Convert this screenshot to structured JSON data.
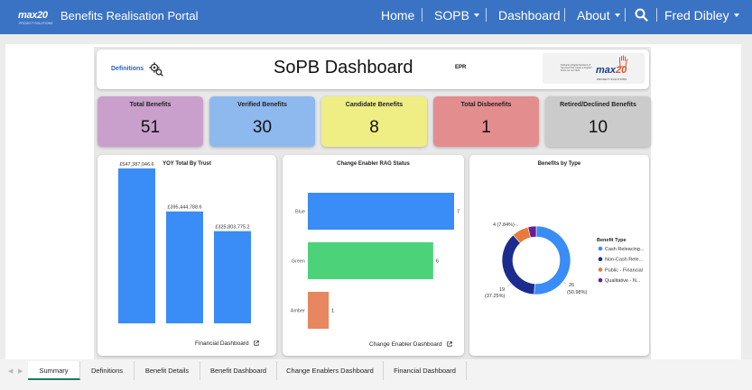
{
  "app": {
    "logo_text": "max20",
    "logo_sub": "PROJECT SOLUTIONS",
    "title": "Benefits Realisation Portal"
  },
  "nav": {
    "home": "Home",
    "sopb": "SOPB",
    "dashboard": "Dashboard",
    "about": "About",
    "user": "Fred Dibley"
  },
  "header": {
    "definitions": "Definitions",
    "title": "SoPB Dashboard",
    "epr": "EPR",
    "logo_tagline": "Delivering Digital Solutions & Services that create a brighter future for our NHS",
    "logo_brand": "max",
    "logo_brand_num": "20",
    "logo_sub": "PROJECT SOLUTIONS"
  },
  "kpis": [
    {
      "label": "Total Benefits",
      "value": "51",
      "color": "#c9a0cc"
    },
    {
      "label": "Verified Benefits",
      "value": "30",
      "color": "#8db9ef"
    },
    {
      "label": "Candidate Benefits",
      "value": "8",
      "color": "#eeee84"
    },
    {
      "label": "Total Disbenefits",
      "value": "1",
      "color": "#e48d8f"
    },
    {
      "label": "Retired/Declined Benefits",
      "value": "10",
      "color": "#cbcbcb"
    }
  ],
  "charts": {
    "yoy_link": "Financial Dashboard",
    "rag_link": "Change Enabler Dashboard"
  },
  "chart_data": [
    {
      "type": "bar",
      "title": "YOY Total By Trust",
      "values": [
        547387046.6,
        395444788.6,
        325803775.2
      ],
      "data_labels": [
        "£547,387,046.6",
        "£395,444,788.6",
        "£325,803,775.2"
      ],
      "color": "#3a8cf6"
    },
    {
      "type": "bar",
      "orientation": "horizontal",
      "title": "Change Enabler RAG Status",
      "categories": [
        "Blue",
        "Green",
        "Amber"
      ],
      "values": [
        7,
        6,
        1
      ],
      "colors": [
        "#3a8cf6",
        "#4cd37a",
        "#e8875f"
      ],
      "xlim": [
        0,
        7
      ]
    },
    {
      "type": "pie",
      "title": "Benefits by Type",
      "legend_title": "Benefit Type",
      "legend": "right",
      "slices": [
        {
          "name": "Cash Releacing...",
          "value": 26,
          "label": "26",
          "pct": "(50.98%)",
          "color": "#3a8cf6"
        },
        {
          "name": "Non-Cash Rele...",
          "value": 19,
          "label": "19",
          "pct": "(37.25%)",
          "color": "#1c2c8e"
        },
        {
          "name": "Public - Financial",
          "value": 4,
          "label": "4 (7.84%)",
          "pct": "",
          "color": "#e87a3e"
        },
        {
          "name": "Qualitative - N...",
          "value": 2,
          "label": "",
          "pct": "",
          "color": "#6c1e8a"
        }
      ]
    }
  ],
  "tabs": [
    "Summary",
    "Definitions",
    "Benefit Details",
    "Benefit Dashboard",
    "Change Enablers Dashboard",
    "Financial Dashboard"
  ]
}
